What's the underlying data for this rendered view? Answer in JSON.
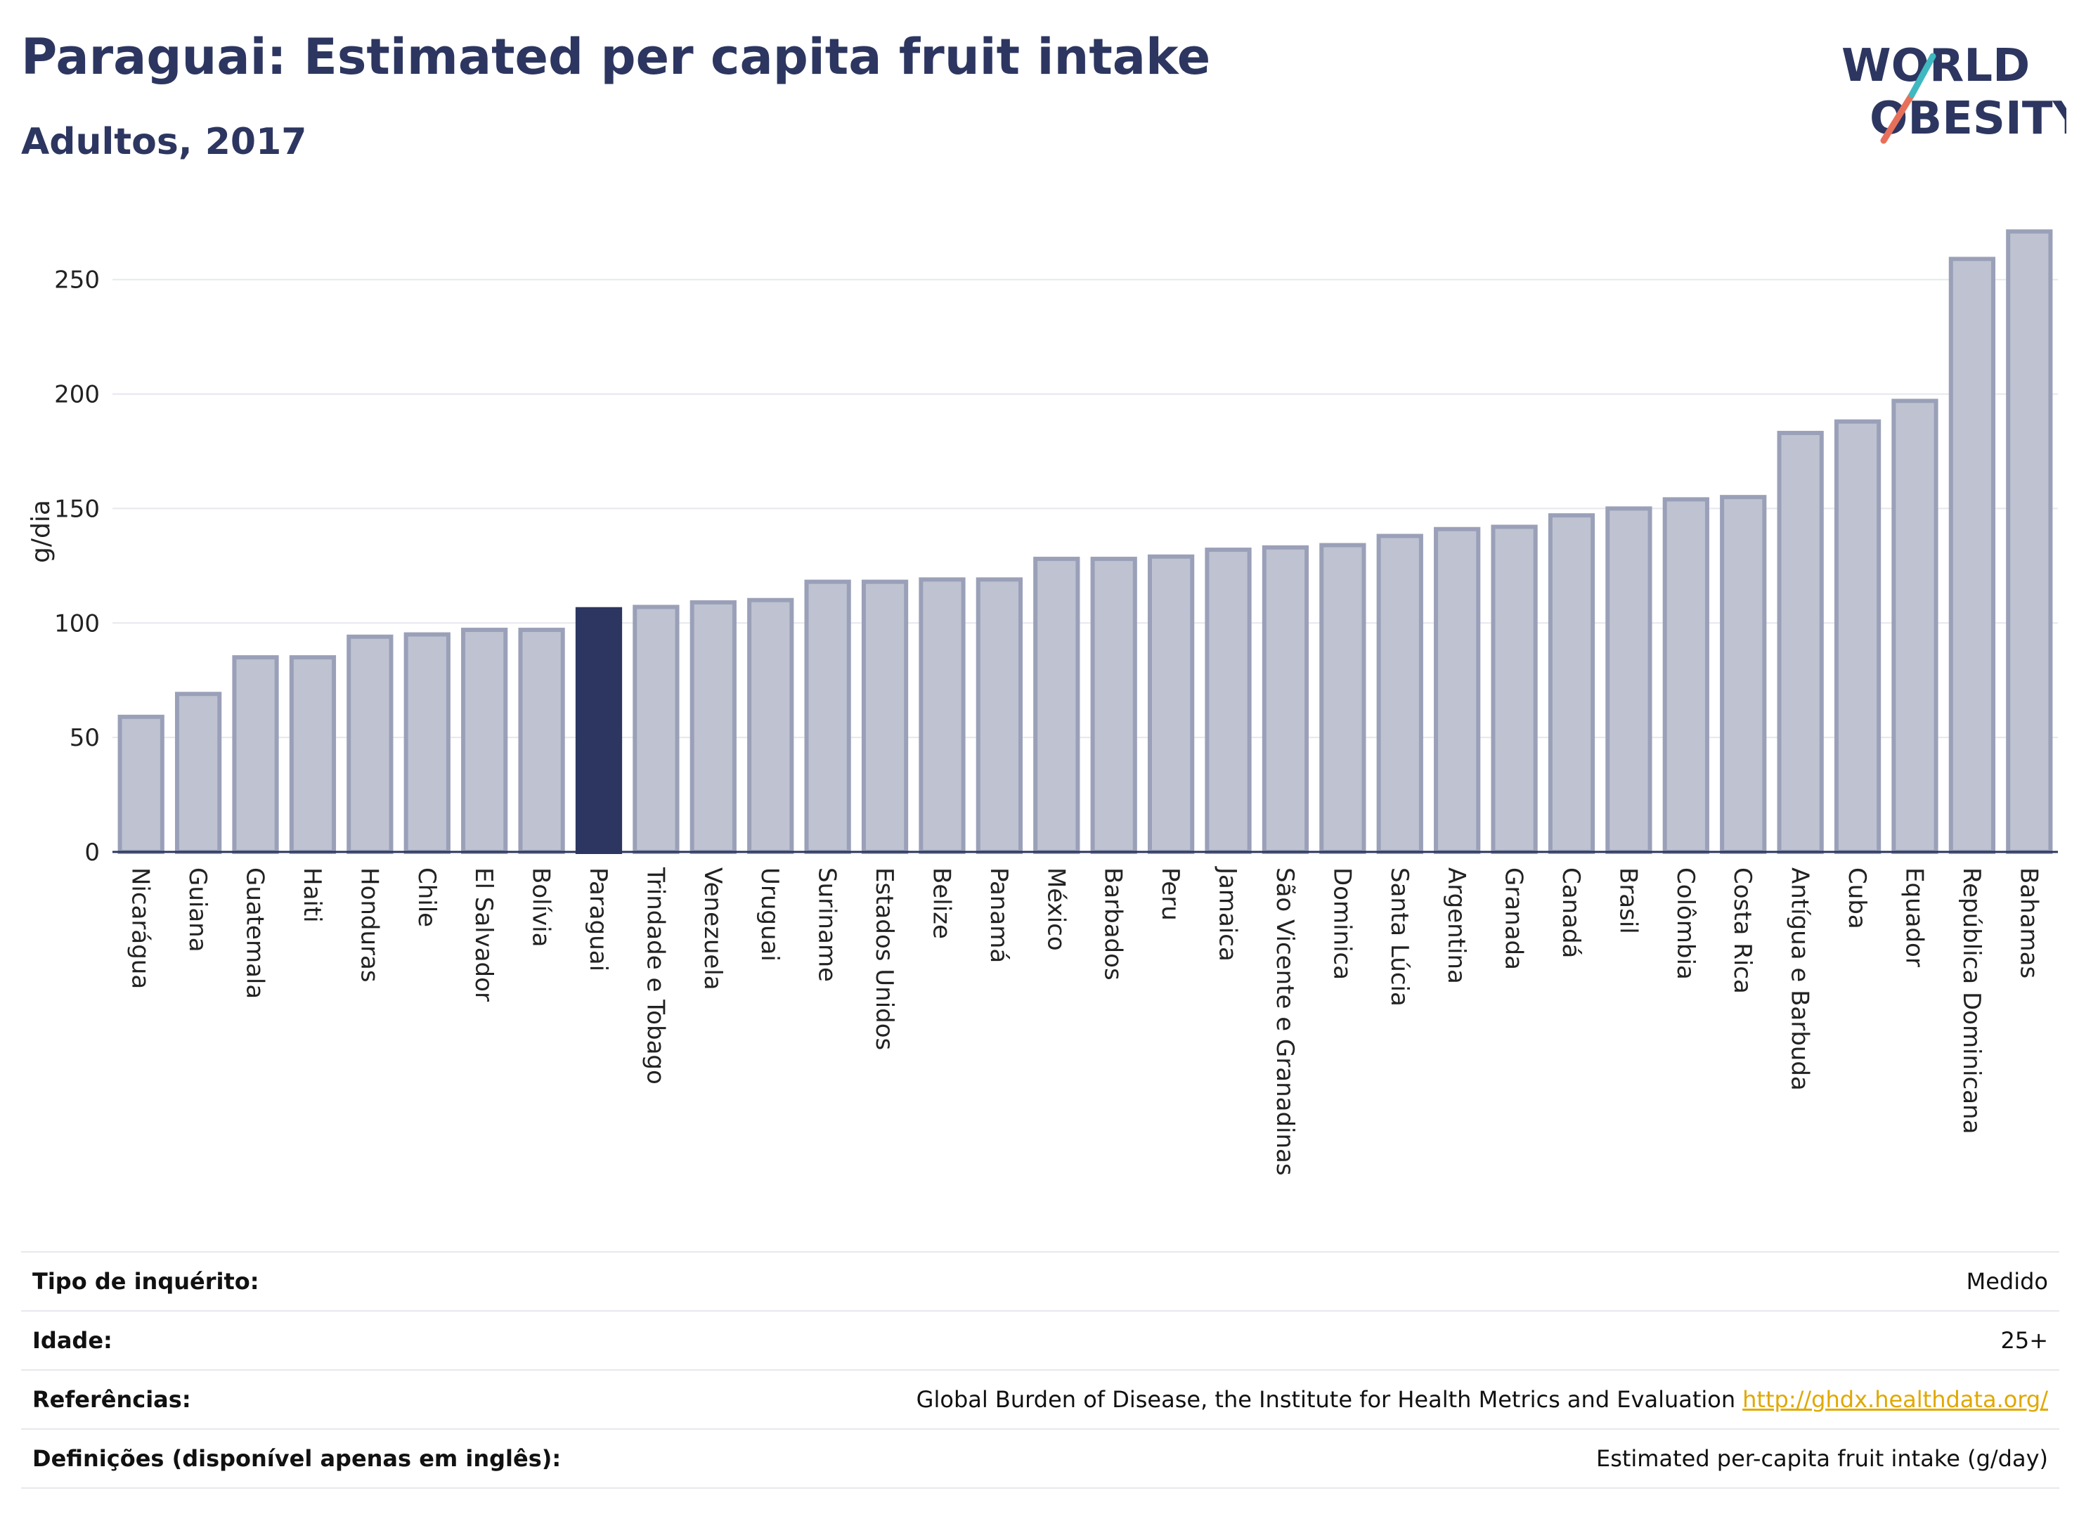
{
  "header": {
    "title": "Paraguai: Estimated per capita fruit intake",
    "subtitle": "Adultos, 2017",
    "logo_line1": "WORLD",
    "logo_line2": "OBESITY"
  },
  "colors": {
    "bar_fill": "#bfc3d1",
    "bar_stroke": "#9aa0b8",
    "highlight": "#2c3660",
    "text_dark": "#2c3660",
    "grid": "#e6e8ee",
    "logo_teal": "#3fb8c0",
    "logo_coral": "#e8705a",
    "link": "#e0a800"
  },
  "chart_data": {
    "type": "bar",
    "ylabel": "g/dia",
    "ylim": [
      0,
      280
    ],
    "yticks": [
      0,
      50,
      100,
      150,
      200,
      250
    ],
    "grid": true,
    "highlight": "Paraguai",
    "categories": [
      "Nicarágua",
      "Guiana",
      "Guatemala",
      "Haiti",
      "Honduras",
      "Chile",
      "El Salvador",
      "Bolívia",
      "Paraguai",
      "Trindade e Tobago",
      "Venezuela",
      "Uruguai",
      "Suriname",
      "Estados Unidos",
      "Belize",
      "Panamá",
      "México",
      "Barbados",
      "Peru",
      "Jamaica",
      "São Vicente e Granadinas",
      "Dominica",
      "Santa Lúcia",
      "Argentina",
      "Granada",
      "Canadá",
      "Brasil",
      "Colômbia",
      "Costa Rica",
      "Antígua e Barbuda",
      "Cuba",
      "Equador",
      "República Dominicana",
      "Bahamas"
    ],
    "values": [
      59,
      69,
      85,
      85,
      94,
      95,
      97,
      97,
      106,
      107,
      109,
      110,
      118,
      118,
      119,
      119,
      128,
      128,
      129,
      132,
      133,
      134,
      138,
      141,
      142,
      147,
      150,
      154,
      155,
      183,
      188,
      197,
      259,
      271
    ]
  },
  "info": {
    "survey_label": "Tipo de inquérito:",
    "survey_value": "Medido",
    "age_label": "Idade:",
    "age_value": "25+",
    "refs_label": "Referências:",
    "refs_value": "Global Burden of Disease, the Institute for Health Metrics and Evaluation",
    "refs_link": "http://ghdx.healthdata.org/",
    "defs_label": "Definições (disponível apenas em inglês):",
    "defs_value": "Estimated per-capita fruit intake (g/day)"
  }
}
